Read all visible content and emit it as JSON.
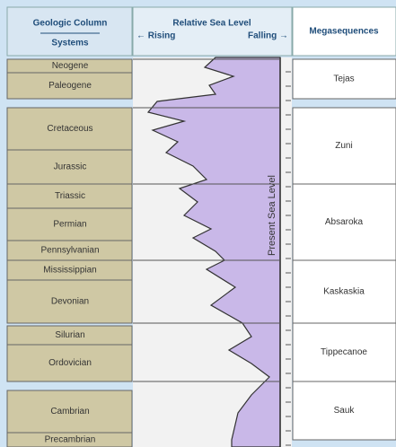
{
  "header": {
    "geologic_column": "Geologic Column",
    "systems": "Systems",
    "relative_sea_level": "Relative Sea Level",
    "rising": "← Rising",
    "falling": "Falling →",
    "megasequences": "Megasequences"
  },
  "present_sea_level": "Present Sea Level",
  "systems": [
    "Neogene",
    "Paleogene",
    "Cretaceous",
    "Jurassic",
    "Triassic",
    "Permian",
    "Pennsylvanian",
    "Mississippian",
    "Devonian",
    "Silurian",
    "Ordovician",
    "Cambrian",
    "Precambrian"
  ],
  "megasequences": [
    "Tejas",
    "Zuni",
    "Absaroka",
    "Kaskaskia",
    "Tippecanoe",
    "Sauk"
  ]
}
